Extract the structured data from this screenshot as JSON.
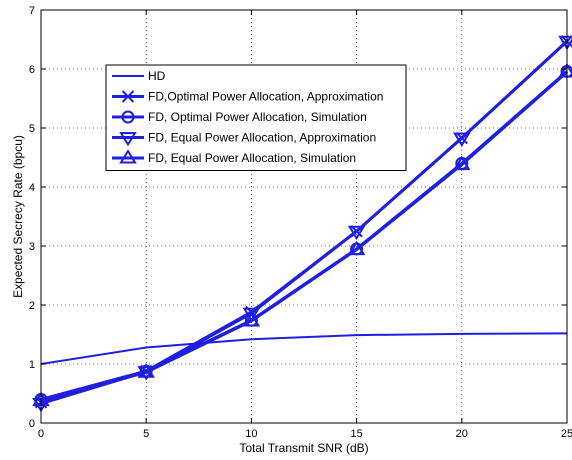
{
  "chart_data": {
    "type": "line",
    "title": "",
    "xlabel": "Total Transmit SNR (dB)",
    "ylabel": "Expected Secrecy Rate (bpcu)",
    "xlim": [
      0,
      25
    ],
    "ylim": [
      0,
      7
    ],
    "xticks": [
      0,
      5,
      10,
      15,
      20,
      25
    ],
    "yticks": [
      0,
      1,
      2,
      3,
      4,
      5,
      6,
      7
    ],
    "grid": true,
    "legend_position": "upper-left",
    "color": "#1f1fe0",
    "series": [
      {
        "name": "HD",
        "marker": "none",
        "lw": 2,
        "x": [
          0,
          5,
          10,
          15,
          20,
          25
        ],
        "y": [
          1.0,
          1.28,
          1.42,
          1.49,
          1.51,
          1.52
        ]
      },
      {
        "name": "FD,Optimal Power Allocation, Approximation",
        "marker": "x",
        "lw": 3,
        "x": [
          0,
          5,
          10,
          15,
          20,
          25
        ],
        "y": [
          0.35,
          0.88,
          1.88,
          3.25,
          4.83,
          6.47
        ]
      },
      {
        "name": "FD, Optimal Power Allocation, Simulation",
        "marker": "circle",
        "lw": 3,
        "x": [
          0,
          5,
          10,
          15,
          20,
          25
        ],
        "y": [
          0.4,
          0.88,
          1.74,
          2.95,
          4.4,
          5.96
        ]
      },
      {
        "name": "FD, Equal Power Allocation, Approximation",
        "marker": "triangle-down",
        "lw": 3,
        "x": [
          0,
          5,
          10,
          15,
          20,
          25
        ],
        "y": [
          0.33,
          0.87,
          1.86,
          3.25,
          4.83,
          6.47
        ]
      },
      {
        "name": "FD, Equal Power Allocation, Simulation",
        "marker": "triangle-up",
        "lw": 3,
        "x": [
          0,
          5,
          10,
          15,
          20,
          25
        ],
        "y": [
          0.38,
          0.86,
          1.73,
          2.94,
          4.38,
          5.95
        ]
      }
    ]
  }
}
